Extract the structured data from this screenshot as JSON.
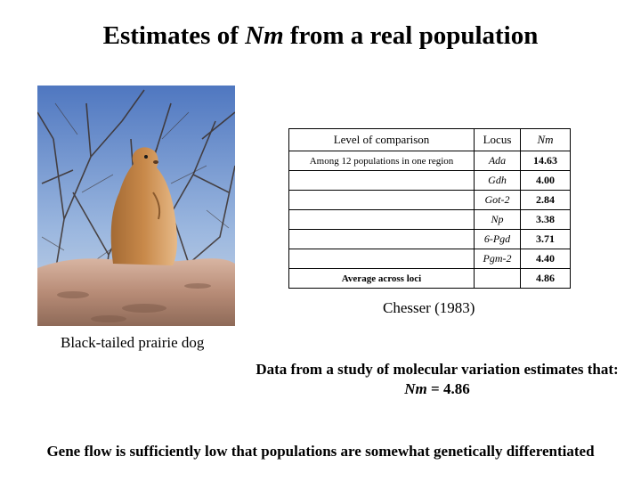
{
  "title": {
    "prefix": "Estimates of ",
    "italic": "Nm",
    "suffix": " from a real population"
  },
  "photo": {
    "caption": "Black-tailed prairie dog"
  },
  "table": {
    "headers": {
      "level": "Level of comparison",
      "locus": "Locus",
      "nm": "Nm"
    },
    "group_label": "Among 12 populations in one region",
    "rows": [
      {
        "locus": "Ada",
        "nm": "14.63"
      },
      {
        "locus": "Gdh",
        "nm": "4.00"
      },
      {
        "locus": "Got-2",
        "nm": "2.84"
      },
      {
        "locus": "Np",
        "nm": "3.38"
      },
      {
        "locus": "6-Pgd",
        "nm": "3.71"
      },
      {
        "locus": "Pgm-2",
        "nm": "4.40"
      }
    ],
    "average_label": "Average across loci",
    "average_value": "4.86"
  },
  "citation": "Chesser (1983)",
  "study": {
    "line1": "Data from a study of molecular variation estimates that:",
    "nm_label": "Nm",
    "nm_value": " = 4.86"
  },
  "conclusion": "Gene flow is sufficiently low that populations are somewhat genetically differentiated"
}
